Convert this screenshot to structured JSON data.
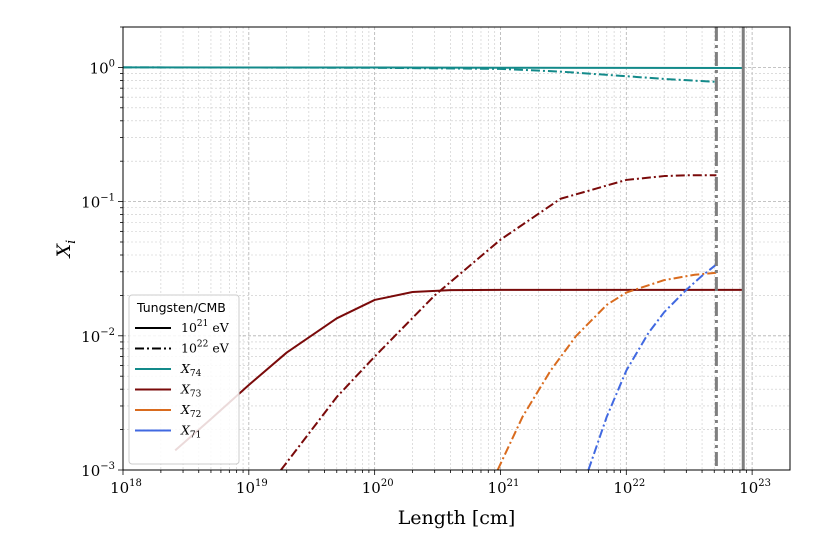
{
  "chart_data": {
    "type": "line",
    "xlabel_main": "Length",
    "xlabel_unit": "[cm]",
    "ylabel": "X",
    "ylabel_sub": "i",
    "xscale": "log",
    "yscale": "log",
    "xlim": [
      1e+18,
      2e+23
    ],
    "ylim": [
      0.001,
      2
    ],
    "grid": true,
    "x_ticks": [
      {
        "base": "10",
        "exp": "18",
        "value": 1e+18
      },
      {
        "base": "10",
        "exp": "19",
        "value": 1e+19
      },
      {
        "base": "10",
        "exp": "20",
        "value": 1e+20
      },
      {
        "base": "10",
        "exp": "21",
        "value": 1e+21
      },
      {
        "base": "10",
        "exp": "22",
        "value": 1e+22
      },
      {
        "base": "10",
        "exp": "23",
        "value": 1e+23
      }
    ],
    "y_ticks": [
      {
        "base": "10",
        "exp": "0",
        "value": 1
      },
      {
        "base": "10",
        "exp": "−1",
        "value": 0.1
      },
      {
        "base": "10",
        "exp": "−2",
        "value": 0.01
      },
      {
        "base": "10",
        "exp": "−3",
        "value": 0.001
      }
    ],
    "vertical_lines": [
      {
        "x": 5.2e+22,
        "style": "dashdot",
        "color": "#7f7f7f"
      },
      {
        "x": 8.5e+22,
        "style": "solid",
        "color": "#7f7f7f"
      }
    ],
    "legend": {
      "title": "Tungsten/CMB",
      "position": "lower-left",
      "style_entries": [
        {
          "base": "10",
          "exp": "21",
          "unit": " eV",
          "style": "solid"
        },
        {
          "base": "10",
          "exp": "22",
          "unit": " eV",
          "style": "dashdot"
        }
      ],
      "color_entries": [
        {
          "label": "X",
          "sub": "74",
          "color": "#138a8a"
        },
        {
          "label": "X",
          "sub": "73",
          "color": "#7a0a0a"
        },
        {
          "label": "X",
          "sub": "72",
          "color": "#d96b1e"
        },
        {
          "label": "X",
          "sub": "71",
          "color": "#4169e1"
        }
      ]
    },
    "series": [
      {
        "species": "74",
        "energy": "10^21 eV",
        "style": "solid",
        "color": "#138a8a",
        "x": [
          1e+18,
          1e+20,
          1e+21,
          1e+22,
          8.5e+22
        ],
        "y": [
          1.0,
          0.998,
          0.995,
          0.992,
          0.99
        ]
      },
      {
        "species": "74",
        "energy": "10^22 eV",
        "style": "dashdot",
        "color": "#138a8a",
        "x": [
          1e+18,
          1e+19,
          1e+20,
          1e+21,
          3e+21,
          1e+22,
          2e+22,
          5.2e+22
        ],
        "y": [
          1.0,
          0.998,
          0.993,
          0.975,
          0.93,
          0.86,
          0.82,
          0.78
        ]
      },
      {
        "species": "73",
        "energy": "10^21 eV",
        "style": "solid",
        "color": "#7a0a0a",
        "x": [
          2.6e+18,
          5e+18,
          1e+19,
          2e+19,
          5e+19,
          1e+20,
          2e+20,
          4e+20,
          1e+21,
          1e+22,
          8.5e+22
        ],
        "y": [
          0.0014,
          0.0024,
          0.0043,
          0.0075,
          0.0135,
          0.0185,
          0.0212,
          0.0219,
          0.022,
          0.022,
          0.022
        ]
      },
      {
        "species": "73",
        "energy": "10^22 eV",
        "style": "dashdot",
        "color": "#7a0a0a",
        "x": [
          1.8e+19,
          5e+19,
          1e+20,
          3e+20,
          1e+21,
          3e+21,
          1e+22,
          2e+22,
          3e+22,
          5.2e+22
        ],
        "y": [
          0.001,
          0.0035,
          0.007,
          0.02,
          0.052,
          0.105,
          0.145,
          0.155,
          0.157,
          0.157
        ]
      },
      {
        "species": "72",
        "energy": "10^22 eV",
        "style": "dashdot",
        "color": "#d96b1e",
        "x": [
          9.5e+20,
          1.5e+21,
          2.5e+21,
          4e+21,
          7e+21,
          1e+22,
          2e+22,
          3.5e+22,
          5.2e+22
        ],
        "y": [
          0.001,
          0.0025,
          0.0055,
          0.01,
          0.017,
          0.021,
          0.026,
          0.0285,
          0.0295
        ]
      },
      {
        "species": "71",
        "energy": "10^22 eV",
        "style": "dashdot",
        "color": "#4169e1",
        "x": [
          5e+21,
          7e+21,
          1e+22,
          1.5e+22,
          2e+22,
          3e+22,
          4e+22,
          5.2e+22
        ],
        "y": [
          0.001,
          0.0025,
          0.0055,
          0.0105,
          0.015,
          0.022,
          0.028,
          0.034
        ]
      }
    ]
  }
}
